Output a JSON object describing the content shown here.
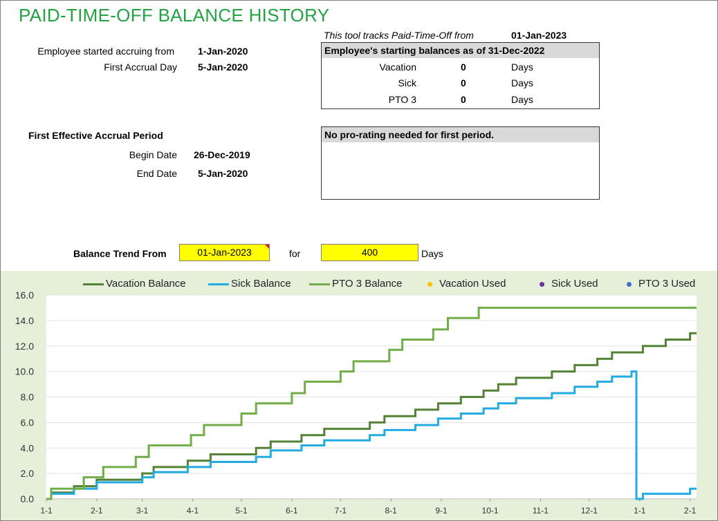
{
  "title": "PAID-TIME-OFF BALANCE HISTORY",
  "tracking": {
    "text": "This tool tracks Paid-Time-Off  from",
    "date": "01-Jan-2023"
  },
  "employee": {
    "accrue_label": "Employee started accruing from",
    "accrue_value": "1-Jan-2020",
    "first_day_label": "First Accrual Day",
    "first_day_value": "5-Jan-2020"
  },
  "starting_balances": {
    "header": "Employee's starting balances as of 31-Dec-2022",
    "rows": [
      {
        "name": "Vacation",
        "value": "0",
        "unit": "Days"
      },
      {
        "name": "Sick",
        "value": "0",
        "unit": "Days"
      },
      {
        "name": "PTO 3",
        "value": "0",
        "unit": "Days"
      }
    ]
  },
  "first_period": {
    "heading": "First Effective Accrual Period",
    "begin_label": "Begin Date",
    "begin_value": "26-Dec-2019",
    "end_label": "End Date",
    "end_value": "5-Jan-2020"
  },
  "prorating_note": "No pro-rating needed for first period.",
  "trend": {
    "label": "Balance Trend From",
    "from_value": "01-Jan-2023",
    "for_label": "for",
    "days_value": "400",
    "days_unit": "Days"
  },
  "colors": {
    "vacation": "#548235",
    "sick": "#21abe0",
    "pto3": "#70ad47",
    "vacation_used": "#ffc000",
    "sick_used": "#7030a0",
    "pto3_used": "#4472c4",
    "title": "#22a342",
    "panel": "#e5efda",
    "input": "#ffff00"
  },
  "legend": {
    "vacation_balance": "Vacation Balance",
    "sick_balance": "Sick Balance",
    "pto3_balance": "PTO 3 Balance",
    "vacation_used": "Vacation Used",
    "sick_used": "Sick Used",
    "pto3_used": "PTO 3 Used"
  },
  "chart_data": {
    "type": "line",
    "step": true,
    "x_start": "2023-01-01",
    "x_end": "2024-02-05",
    "ylim": [
      0,
      16
    ],
    "yticks": [
      "0.0",
      "2.0",
      "4.0",
      "6.0",
      "8.0",
      "10.0",
      "12.0",
      "14.0",
      "16.0"
    ],
    "xticks": [
      {
        "label": "1-1",
        "date": "2023-01-01"
      },
      {
        "label": "2-1",
        "date": "2023-02-01"
      },
      {
        "label": "3-1",
        "date": "2023-03-01"
      },
      {
        "label": "4-1",
        "date": "2023-04-01"
      },
      {
        "label": "5-1",
        "date": "2023-05-01"
      },
      {
        "label": "6-1",
        "date": "2023-06-01"
      },
      {
        "label": "7-1",
        "date": "2023-07-01"
      },
      {
        "label": "8-1",
        "date": "2023-08-01"
      },
      {
        "label": "9-1",
        "date": "2023-09-01"
      },
      {
        "label": "10-1",
        "date": "2023-10-01"
      },
      {
        "label": "11-1",
        "date": "2023-11-01"
      },
      {
        "label": "12-1",
        "date": "2023-12-01"
      },
      {
        "label": "1-1",
        "date": "2024-01-01"
      },
      {
        "label": "2-1",
        "date": "2024-02-01"
      }
    ],
    "grid": true,
    "legend_position": "top",
    "series": [
      {
        "name": "Vacation Balance",
        "color": "#548235",
        "points": [
          [
            "2023-01-01",
            0
          ],
          [
            "2023-01-04",
            0.5
          ],
          [
            "2023-01-18",
            1.0
          ],
          [
            "2023-02-01",
            1.5
          ],
          [
            "2023-02-15",
            1.5
          ],
          [
            "2023-03-01",
            2.0
          ],
          [
            "2023-03-08",
            2.5
          ],
          [
            "2023-03-29",
            3.0
          ],
          [
            "2023-04-12",
            3.5
          ],
          [
            "2023-04-26",
            3.5
          ],
          [
            "2023-05-10",
            4.0
          ],
          [
            "2023-05-19",
            4.5
          ],
          [
            "2023-06-07",
            5.0
          ],
          [
            "2023-06-21",
            5.5
          ],
          [
            "2023-07-05",
            5.5
          ],
          [
            "2023-07-19",
            6.0
          ],
          [
            "2023-07-28",
            6.5
          ],
          [
            "2023-08-16",
            7.0
          ],
          [
            "2023-08-30",
            7.5
          ],
          [
            "2023-09-13",
            8.0
          ],
          [
            "2023-09-27",
            8.5
          ],
          [
            "2023-10-06",
            9.0
          ],
          [
            "2023-10-17",
            9.5
          ],
          [
            "2023-11-08",
            10.0
          ],
          [
            "2023-11-22",
            10.5
          ],
          [
            "2023-12-06",
            11.0
          ],
          [
            "2023-12-15",
            11.5
          ],
          [
            "2024-01-03",
            12.0
          ],
          [
            "2024-01-17",
            12.5
          ],
          [
            "2024-02-01",
            13.0
          ],
          [
            "2024-02-05",
            13.0
          ]
        ]
      },
      {
        "name": "Sick Balance",
        "color": "#21abe0",
        "points": [
          [
            "2023-01-01",
            0
          ],
          [
            "2023-01-04",
            0.4
          ],
          [
            "2023-01-18",
            0.8
          ],
          [
            "2023-02-01",
            1.3
          ],
          [
            "2023-02-15",
            1.3
          ],
          [
            "2023-03-01",
            1.7
          ],
          [
            "2023-03-08",
            2.1
          ],
          [
            "2023-03-29",
            2.5
          ],
          [
            "2023-04-12",
            2.9
          ],
          [
            "2023-04-26",
            2.9
          ],
          [
            "2023-05-10",
            3.3
          ],
          [
            "2023-05-19",
            3.8
          ],
          [
            "2023-06-07",
            4.2
          ],
          [
            "2023-06-21",
            4.6
          ],
          [
            "2023-07-05",
            4.6
          ],
          [
            "2023-07-19",
            5.0
          ],
          [
            "2023-07-28",
            5.4
          ],
          [
            "2023-08-16",
            5.8
          ],
          [
            "2023-08-30",
            6.3
          ],
          [
            "2023-09-13",
            6.7
          ],
          [
            "2023-09-27",
            7.1
          ],
          [
            "2023-10-06",
            7.5
          ],
          [
            "2023-10-17",
            7.9
          ],
          [
            "2023-11-08",
            8.3
          ],
          [
            "2023-11-22",
            8.8
          ],
          [
            "2023-12-06",
            9.2
          ],
          [
            "2023-12-15",
            9.6
          ],
          [
            "2023-12-27",
            10.0
          ],
          [
            "2023-12-29",
            10.0
          ],
          [
            "2023-12-30",
            0
          ],
          [
            "2024-01-03",
            0.4
          ],
          [
            "2024-02-01",
            0.8
          ],
          [
            "2024-02-05",
            0.8
          ]
        ]
      },
      {
        "name": "PTO 3 Balance",
        "color": "#70ad47",
        "points": [
          [
            "2023-01-01",
            0
          ],
          [
            "2023-01-04",
            0.8
          ],
          [
            "2023-01-24",
            1.7
          ],
          [
            "2023-02-05",
            2.5
          ],
          [
            "2023-02-25",
            3.3
          ],
          [
            "2023-03-05",
            4.2
          ],
          [
            "2023-03-31",
            5.0
          ],
          [
            "2023-04-08",
            5.8
          ],
          [
            "2023-05-01",
            6.7
          ],
          [
            "2023-05-10",
            7.5
          ],
          [
            "2023-06-01",
            8.3
          ],
          [
            "2023-06-09",
            9.2
          ],
          [
            "2023-07-01",
            10.0
          ],
          [
            "2023-07-09",
            10.8
          ],
          [
            "2023-07-31",
            11.7
          ],
          [
            "2023-08-08",
            12.5
          ],
          [
            "2023-08-27",
            13.3
          ],
          [
            "2023-09-05",
            14.2
          ],
          [
            "2023-09-24",
            15.0
          ],
          [
            "2024-02-05",
            15.0
          ]
        ]
      }
    ]
  }
}
